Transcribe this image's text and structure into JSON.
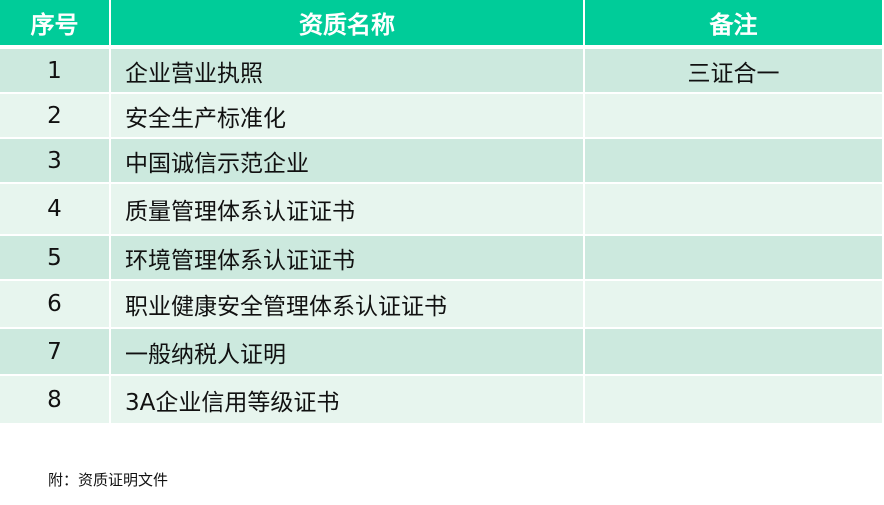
{
  "table": {
    "headers": [
      "序号",
      "资质名称",
      "备注"
    ],
    "rows": [
      {
        "no": "1",
        "name": "企业营业执照",
        "remark": "三证合一"
      },
      {
        "no": "2",
        "name": "安全生产标准化",
        "remark": ""
      },
      {
        "no": "3",
        "name": "中国诚信示范企业",
        "remark": ""
      },
      {
        "no": "4",
        "name": "质量管理体系认证证书",
        "remark": ""
      },
      {
        "no": "5",
        "name": "环境管理体系认证证书",
        "remark": ""
      },
      {
        "no": "6",
        "name": "职业健康安全管理体系认证证书",
        "remark": ""
      },
      {
        "no": "7",
        "name": "一般纳税人证明",
        "remark": ""
      },
      {
        "no": "8",
        "name": "3A企业信用等级证书",
        "remark": ""
      }
    ]
  },
  "note": "附：资质证明文件",
  "colors": {
    "header": "#00cc99",
    "row_dark": "#cce9de",
    "row_light": "#e7f5ee"
  }
}
